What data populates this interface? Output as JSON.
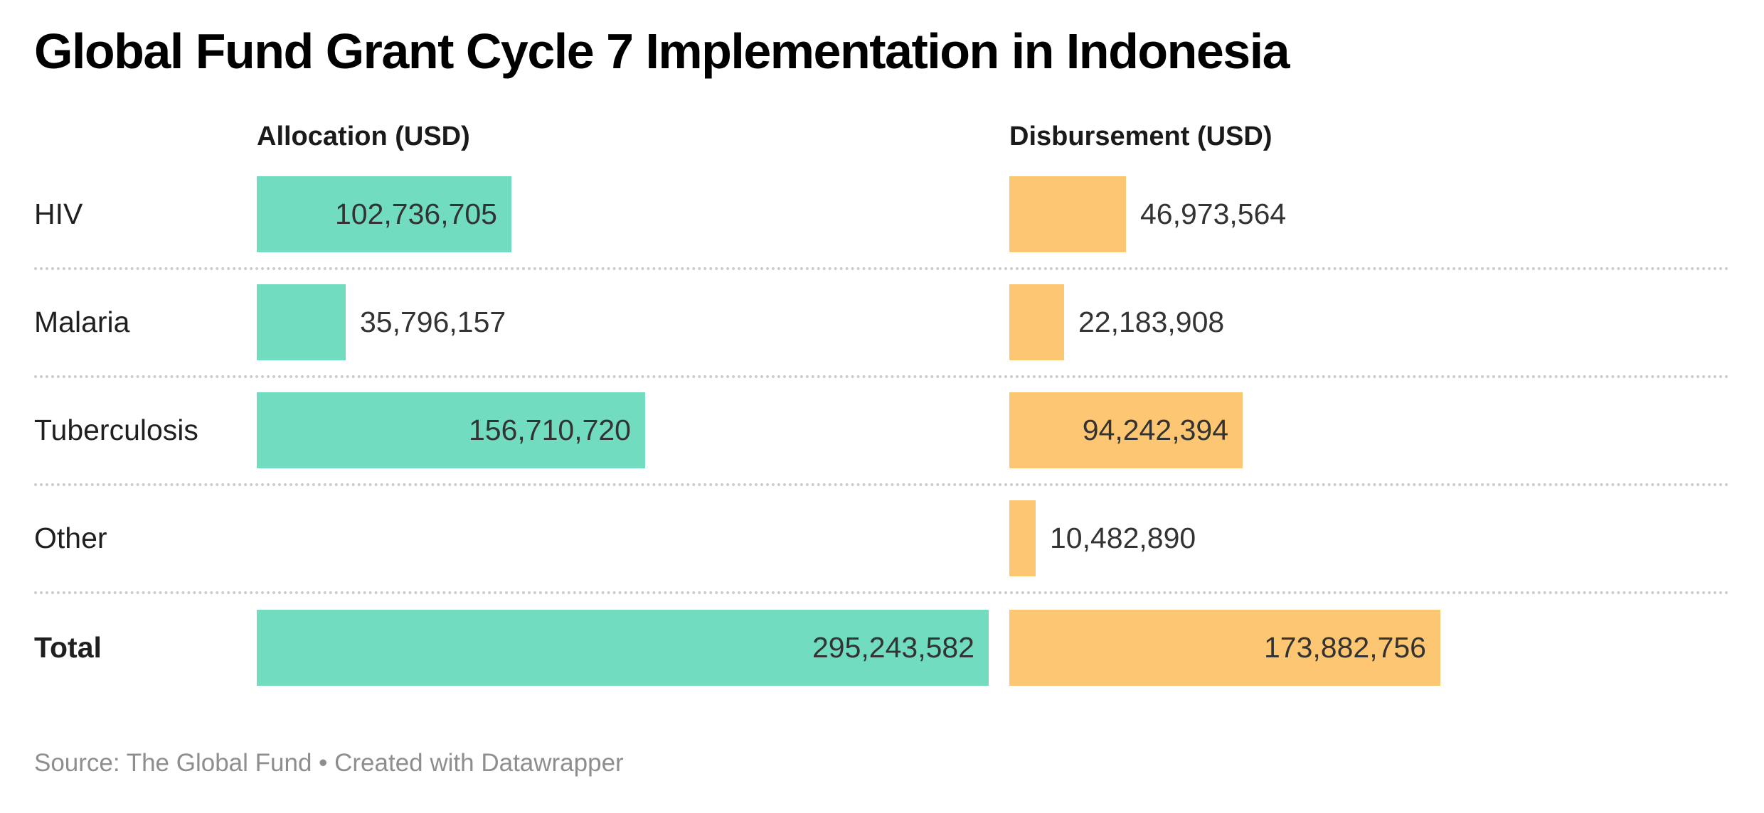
{
  "title": "Global Fund Grant Cycle 7 Implementation in Indonesia",
  "columns": {
    "allocation": "Allocation (USD)",
    "disbursement": "Disbursement (USD)"
  },
  "footer": {
    "text": "Source: The Global Fund • Created with Datawrapper"
  },
  "colors": {
    "allocation_bar": "#72DCC0",
    "disbursement_bar": "#FDC672",
    "separator": "#CCCCCC",
    "value_text": "#333333",
    "label_text": "#1F1F1F",
    "footer_text": "#8E8E8E"
  },
  "chart_data": {
    "type": "bar",
    "orientation": "horizontal",
    "title": "Global Fund Grant Cycle 7 Implementation in Indonesia",
    "categories": [
      "HIV",
      "Malaria",
      "Tuberculosis",
      "Other",
      "Total"
    ],
    "series": [
      {
        "name": "Allocation (USD)",
        "color": "#72DCC0",
        "values": [
          102736705,
          35796157,
          156710720,
          null,
          295243582
        ]
      },
      {
        "name": "Disbursement (USD)",
        "color": "#FDC672",
        "values": [
          46973564,
          22183908,
          94242394,
          10482890,
          173882756
        ]
      }
    ],
    "xlim": [
      0,
      295243582
    ],
    "grid": false,
    "legend_position": "column-headers",
    "value_format": "#,###",
    "source": "The Global Fund"
  },
  "rows": [
    {
      "label": "HIV",
      "bold": false,
      "allocation": {
        "formatted": "102,736,705",
        "inside": true
      },
      "disbursement": {
        "formatted": "46,973,564",
        "inside": false
      }
    },
    {
      "label": "Malaria",
      "bold": false,
      "allocation": {
        "formatted": "35,796,157",
        "inside": false
      },
      "disbursement": {
        "formatted": "22,183,908",
        "inside": false
      }
    },
    {
      "label": "Tuberculosis",
      "bold": false,
      "allocation": {
        "formatted": "156,710,720",
        "inside": true
      },
      "disbursement": {
        "formatted": "94,242,394",
        "inside": true
      }
    },
    {
      "label": "Other",
      "bold": false,
      "allocation": null,
      "disbursement": {
        "formatted": "10,482,890",
        "inside": false
      }
    },
    {
      "label": "Total",
      "bold": true,
      "allocation": {
        "formatted": "295,243,582",
        "inside": true
      },
      "disbursement": {
        "formatted": "173,882,756",
        "inside": true
      }
    }
  ]
}
